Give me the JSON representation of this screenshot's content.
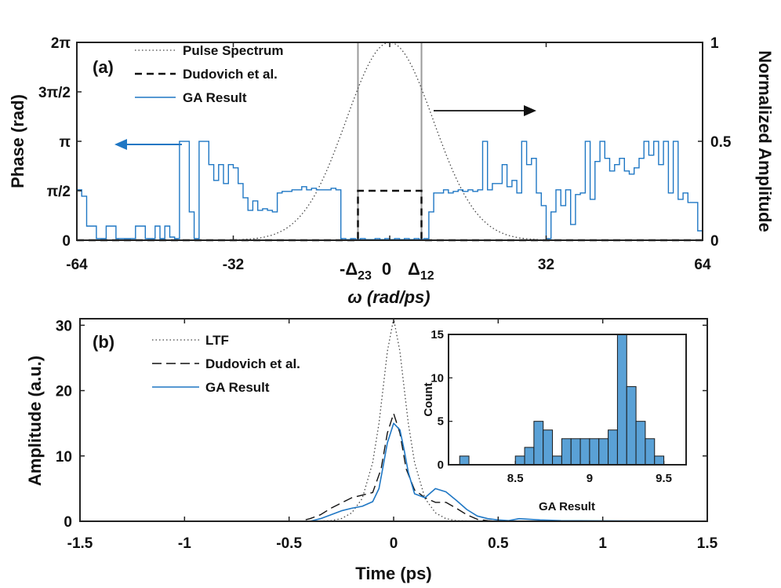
{
  "chart_data": [
    {
      "type": "line",
      "panel_label": "(a)",
      "xlabel": "ω (rad/ps)",
      "ylabel_left": "Phase (rad)",
      "ylabel_right": "Normalized Amplitude",
      "xlim": [
        -64,
        64
      ],
      "ylim_left": [
        0,
        6.2832
      ],
      "ylim_right": [
        0,
        1
      ],
      "x_ticks": [
        -64,
        -32,
        0,
        32,
        64
      ],
      "x_tick_labels": [
        "-64",
        "-32",
        "0",
        "32",
        "64"
      ],
      "y_left_ticks": [
        0,
        1.5708,
        3.1416,
        4.7124,
        6.2832
      ],
      "y_left_tick_labels": [
        "0",
        "π/2",
        "π",
        "3π/2",
        "2π"
      ],
      "y_right_ticks": [
        0,
        0.5,
        1
      ],
      "y_right_tick_labels": [
        "0",
        "0.5",
        "1"
      ],
      "delta_markers": [
        {
          "x": -6.5,
          "label": "-Δ",
          "sub": "23"
        },
        {
          "x": 6.5,
          "label": "Δ",
          "sub": "12"
        }
      ],
      "legend": [
        "Pulse Spectrum",
        "Dudovich et al.",
        "GA Result"
      ],
      "series": [
        {
          "name": "Pulse Spectrum",
          "axis": "right",
          "style": "dotted",
          "color": "#444444",
          "model": "gaussian",
          "center": 0,
          "fwhm": 21,
          "peak": 1
        },
        {
          "name": "Dudovich et al.",
          "axis": "left",
          "style": "dashed",
          "color": "#111111",
          "x": [
            -64,
            -6.5,
            -6.5,
            6.5,
            6.5,
            64
          ],
          "y": [
            0,
            0,
            1.5708,
            1.5708,
            0,
            0
          ]
        },
        {
          "name": "GA Result",
          "axis": "left",
          "style": "solid",
          "color": "#1f77c4",
          "x": [
            -64,
            -63,
            -62,
            -61,
            -60,
            -59,
            -58,
            -57,
            -56,
            -55,
            -54,
            -53,
            -52,
            -51,
            -50,
            -49,
            -48,
            -47,
            -46,
            -45,
            -44,
            -43,
            -42,
            -41,
            -40,
            -39,
            -38,
            -37,
            -36,
            -35,
            -34,
            -33,
            -32,
            -31,
            -30,
            -29,
            -28,
            -27,
            -26,
            -25,
            -24,
            -23,
            -22,
            -21,
            -20,
            -19,
            -18,
            -17,
            -16,
            -15,
            -14,
            -13,
            -12,
            -11,
            -10,
            -9,
            -8,
            -7,
            -6,
            -5,
            -4,
            -3,
            -2,
            -1,
            0,
            1,
            2,
            3,
            4,
            5,
            6,
            7,
            8,
            9,
            10,
            11,
            12,
            13,
            14,
            15,
            16,
            17,
            18,
            19,
            20,
            21,
            22,
            23,
            24,
            25,
            26,
            27,
            28,
            29,
            30,
            31,
            32,
            33,
            34,
            35,
            36,
            37,
            38,
            39,
            40,
            41,
            42,
            43,
            44,
            45,
            46,
            47,
            48,
            49,
            50,
            51,
            52,
            53,
            54,
            55,
            56,
            57,
            58,
            59,
            60,
            61,
            62,
            63,
            64
          ],
          "y": [
            1.6,
            1.4,
            0.45,
            0.45,
            0.05,
            0.05,
            0.45,
            0.45,
            0.05,
            0.05,
            0.05,
            0.05,
            0.45,
            0.45,
            0.05,
            0.05,
            0.45,
            0.05,
            0.45,
            0.1,
            0.05,
            3.14,
            3.14,
            0.9,
            0.05,
            3.14,
            3.14,
            2.4,
            1.9,
            2.4,
            1.8,
            2.4,
            2.3,
            1.8,
            1.35,
            0.95,
            1.25,
            0.95,
            1.0,
            0.95,
            0.9,
            1.5,
            1.55,
            1.55,
            1.6,
            1.6,
            1.7,
            1.6,
            1.65,
            1.6,
            1.6,
            1.6,
            1.65,
            1.6,
            0.05,
            0.02,
            0.05,
            0.02,
            0.05,
            0.02,
            0.02,
            0.05,
            0.02,
            0.05,
            0.02,
            0.05,
            0.02,
            0.05,
            0.02,
            0.05,
            0.02,
            0.05,
            0.9,
            1.5,
            1.5,
            1.6,
            1.5,
            1.55,
            1.6,
            1.55,
            1.6,
            1.55,
            1.6,
            3.14,
            1.6,
            1.8,
            1.8,
            2.4,
            1.7,
            1.9,
            1.5,
            3.14,
            2.4,
            2.6,
            1.5,
            1.1,
            0.05,
            0.9,
            1.6,
            1.1,
            1.6,
            0.5,
            1.45,
            1.5,
            3.14,
            1.3,
            2.5,
            3.14,
            2.6,
            2.2,
            2.4,
            2.6,
            2.2,
            2.1,
            2.3,
            2.6,
            3.14,
            2.7,
            3.14,
            2.4,
            3.14,
            1.5,
            3.14,
            1.3,
            1.5,
            1.2,
            1.2,
            0.3,
            0.25
          ]
        }
      ]
    },
    {
      "type": "line",
      "panel_label": "(b)",
      "xlabel": "Time (ps)",
      "ylabel": "Amplitude (a.u.)",
      "xlim": [
        -1.5,
        1.5
      ],
      "ylim": [
        0,
        31
      ],
      "x_ticks": [
        -1.5,
        -1,
        -0.5,
        0,
        0.5,
        1,
        1.5
      ],
      "x_tick_labels": [
        "-1.5",
        "-1",
        "-0.5",
        "0",
        "0.5",
        "1",
        "1.5"
      ],
      "y_ticks": [
        0,
        10,
        20,
        30
      ],
      "y_tick_labels": [
        "0",
        "10",
        "20",
        "30"
      ],
      "legend": [
        "LTF",
        "Dudovich et al.",
        "GA Result"
      ],
      "series": [
        {
          "name": "LTF",
          "style": "dotted",
          "color": "#444444",
          "x": [
            -1.5,
            -0.4,
            -0.3,
            -0.25,
            -0.2,
            -0.15,
            -0.1,
            -0.07,
            -0.05,
            -0.03,
            0,
            0.03,
            0.05,
            0.07,
            0.1,
            0.15,
            0.2,
            0.25,
            0.3,
            0.4,
            1.5
          ],
          "y": [
            0,
            0,
            0.1,
            0.4,
            1.3,
            3.5,
            9,
            15,
            20.5,
            26,
            31,
            26,
            20.5,
            15,
            9,
            3.5,
            1.3,
            0.4,
            0.1,
            0,
            0
          ]
        },
        {
          "name": "Dudovich et al.",
          "style": "dashed",
          "color": "#111111",
          "x": [
            -1.5,
            -0.45,
            -0.4,
            -0.35,
            -0.3,
            -0.25,
            -0.2,
            -0.15,
            -0.1,
            -0.06,
            -0.03,
            0,
            0.03,
            0.06,
            0.1,
            0.15,
            0.2,
            0.25,
            0.3,
            0.35,
            0.4,
            0.45,
            0.5,
            1.5
          ],
          "y": [
            0,
            0,
            0.4,
            1.0,
            2.0,
            2.8,
            3.6,
            4.0,
            4.4,
            8,
            13.5,
            16.5,
            13.5,
            8,
            4.8,
            3.6,
            2.9,
            2.9,
            2.0,
            1.0,
            0.3,
            0.1,
            0,
            0
          ]
        },
        {
          "name": "GA Result",
          "style": "solid",
          "color": "#1f77c4",
          "x": [
            -1.5,
            -0.4,
            -0.35,
            -0.3,
            -0.25,
            -0.2,
            -0.15,
            -0.1,
            -0.07,
            -0.05,
            -0.03,
            0,
            0.03,
            0.05,
            0.07,
            0.1,
            0.15,
            0.2,
            0.25,
            0.3,
            0.35,
            0.4,
            0.45,
            0.5,
            0.55,
            0.6,
            0.7,
            0.8,
            1.5
          ],
          "y": [
            0,
            0,
            0.4,
            1.0,
            1.6,
            2.0,
            2.3,
            3.0,
            5,
            8.5,
            12,
            15,
            14,
            11,
            7.5,
            4.2,
            3.6,
            5.0,
            4.5,
            3.2,
            1.8,
            0.8,
            0.4,
            0.2,
            0.1,
            0.4,
            0.2,
            0.1,
            0
          ]
        }
      ]
    },
    {
      "type": "bar",
      "inset": true,
      "xlabel": "GA Result",
      "ylabel": "Count",
      "xlim": [
        8.05,
        9.65
      ],
      "ylim": [
        0,
        15
      ],
      "x_ticks": [
        8.5,
        9,
        9.5
      ],
      "x_tick_labels": [
        "8.5",
        "9",
        "9.5"
      ],
      "y_ticks": [
        0,
        5,
        10,
        15
      ],
      "y_tick_labels": [
        "0",
        "5",
        "10",
        "15"
      ],
      "bin_width": 0.0625,
      "bin_starts": [
        8.125,
        8.1875,
        8.25,
        8.3125,
        8.375,
        8.4375,
        8.5,
        8.5625,
        8.625,
        8.6875,
        8.75,
        8.8125,
        8.875,
        8.9375,
        9.0,
        9.0625,
        9.125,
        9.1875,
        9.25,
        9.3125,
        9.375,
        9.4375,
        9.5,
        9.5625
      ],
      "counts": [
        1,
        0,
        0,
        0,
        0,
        0,
        1,
        2,
        5,
        4,
        1,
        3,
        3,
        3,
        3,
        3,
        4,
        15,
        9,
        5,
        3,
        1,
        0,
        0
      ],
      "color": "#5aa1d6"
    }
  ]
}
